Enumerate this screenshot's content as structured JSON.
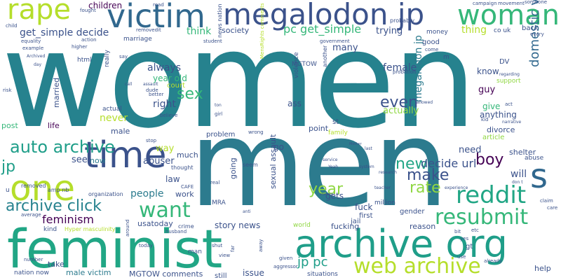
{
  "palette": {
    "teal_dark": "#2c7b8e",
    "teal": "#26828e",
    "blue": "#3b528b",
    "navy": "#440154",
    "green": "#35b779",
    "light_green": "#90d743",
    "yellow_green": "#b5de2b",
    "sea_green": "#21a685",
    "cyan": "#1f9e89",
    "slate": "#31688e",
    "grey_light": "#c7e020"
  },
  "words": {
    "women": "women",
    "men": "men",
    "feminist": "feminist",
    "archive_org": "archive org",
    "time": "time",
    "one": "one",
    "s": "s",
    "victim": "victim",
    "megalodon_jp": "megalodon jp",
    "woman": "woman",
    "rape": "rape",
    "reddit": "reddit",
    "resubmit": "resubmit",
    "web_archive": "web archive",
    "auto_archive": "auto archive",
    "want": "want",
    "archive_click": "archive click",
    "make": "make",
    "rate": "rate",
    "year": "year",
    "new": "new",
    "boy": "boy",
    "even": "even",
    "sex": "sex",
    "domestic_violence": "domestic violence",
    "megalodon_jp_v": "megalodon jp",
    "feminism": "feminism",
    "jp_pc": "jp pc",
    "get_simple_decide": "get_simple decide",
    "pc_get_simple": "pc get_simple",
    "decide_url": "decide url",
    "jp": "jp",
    "female": "female",
    "right": "right",
    "always": "always",
    "year_old": "year old",
    "story_news": "story news",
    "usatoday": "usatoday",
    "male_victim": "male victim",
    "mgtow_comments": "MGTOW comments",
    "issue": "issue",
    "children": "children",
    "life": "life",
    "see": "see",
    "take": "take",
    "now": "now",
    "abuser": "abuser",
    "people": "people",
    "law": "law",
    "way": "way",
    "never": "never",
    "male": "male",
    "think": "think",
    "society": "society",
    "trying": "trying",
    "thing": "thing",
    "many": "many",
    "guy": "guy",
    "give": "give",
    "anything": "anything",
    "divorce": "divorce",
    "actually": "actually",
    "know": "know",
    "need": "need",
    "will": "will",
    "help": "help",
    "reason": "reason",
    "fucking": "fucking",
    "fuck": "fuck",
    "gets": "gets",
    "point": "point",
    "ass": "ass",
    "go": "go",
    "sexual_assault": "sexual assault",
    "going": "going",
    "post": "post",
    "married": "married",
    "much": "much",
    "work": "work",
    "dv": "DV",
    "support": "support",
    "shelter": "shelter",
    "abuse": "abuse",
    "gender": "gender",
    "jail": "jail",
    "article": "article",
    "first": "first",
    "million": "million",
    "problem": "problem",
    "family": "family",
    "st": "st",
    "good": "good",
    "back": "back",
    "co_uk": "co uk",
    "money": "money",
    "probably": "probably",
    "html": "html",
    "marriage": "marriage",
    "really": "really",
    "court": "court",
    "mra": "MRA",
    "nation_now": "nation now",
    "situations": "situations",
    "still": "still",
    "gt": "gt",
    "mgtow": "MGTOW",
    "news_nation": "news nation",
    "menrights_comments": "MensRights comments",
    "violence": "violence",
    "another": "another",
    "thought": "thought",
    "removed": "removed",
    "man": "man",
    "fought": "fought",
    "read": "read",
    "campaign": "campaign",
    "movement": "movement",
    "someone": "someone",
    "child": "child",
    "equality": "equality",
    "example": "example",
    "archived": "Archived",
    "day": "day",
    "higher": "higher",
    "say": "say",
    "action": "action",
    "risk": "risk",
    "actual": "actual",
    "dude": "dude",
    "better": "better",
    "believe": "believe",
    "assault": "assault",
    "call": "call",
    "ton": "ton",
    "girl": "girl",
    "wrong": "wrong",
    "stop": "stop",
    "removedit": "removedit",
    "government": "government",
    "student": "student",
    "come": "come",
    "every": "every",
    "regarding": "regarding",
    "allowed": "allowed",
    "act": "act",
    "narrative": "narrative",
    "kid": "kid",
    "claim": "claim",
    "care": "care",
    "dont": "don t",
    "experience": "experience",
    "teacher": "teacher",
    "research": "research",
    "service": "service",
    "yeah": "Yeah",
    "system": "system",
    "mother": "Mother",
    "last": "last",
    "organization": "organization",
    "real": "real",
    "cafe": "CAFE",
    "statistic": "statistic",
    "anti": "anti",
    "crime": "crime",
    "hyper_masculinity": "Hyper masculinity",
    "average": "average",
    "kind": "kind",
    "amp_nb": "amp nb",
    "today": "today",
    "around": "around",
    "shut": "shut",
    "view": "view",
    "far": "far",
    "away": "away",
    "given": "given",
    "aggressor": "aggressor",
    "number": "number",
    "husband": "husband",
    "already": "already",
    "use": "use",
    "yes": "yes",
    "probation": "probation",
    "seem": "seem",
    "u": "u",
    "m": "m",
    "etc": "etc",
    "world": "world",
    "bit": "bit"
  }
}
